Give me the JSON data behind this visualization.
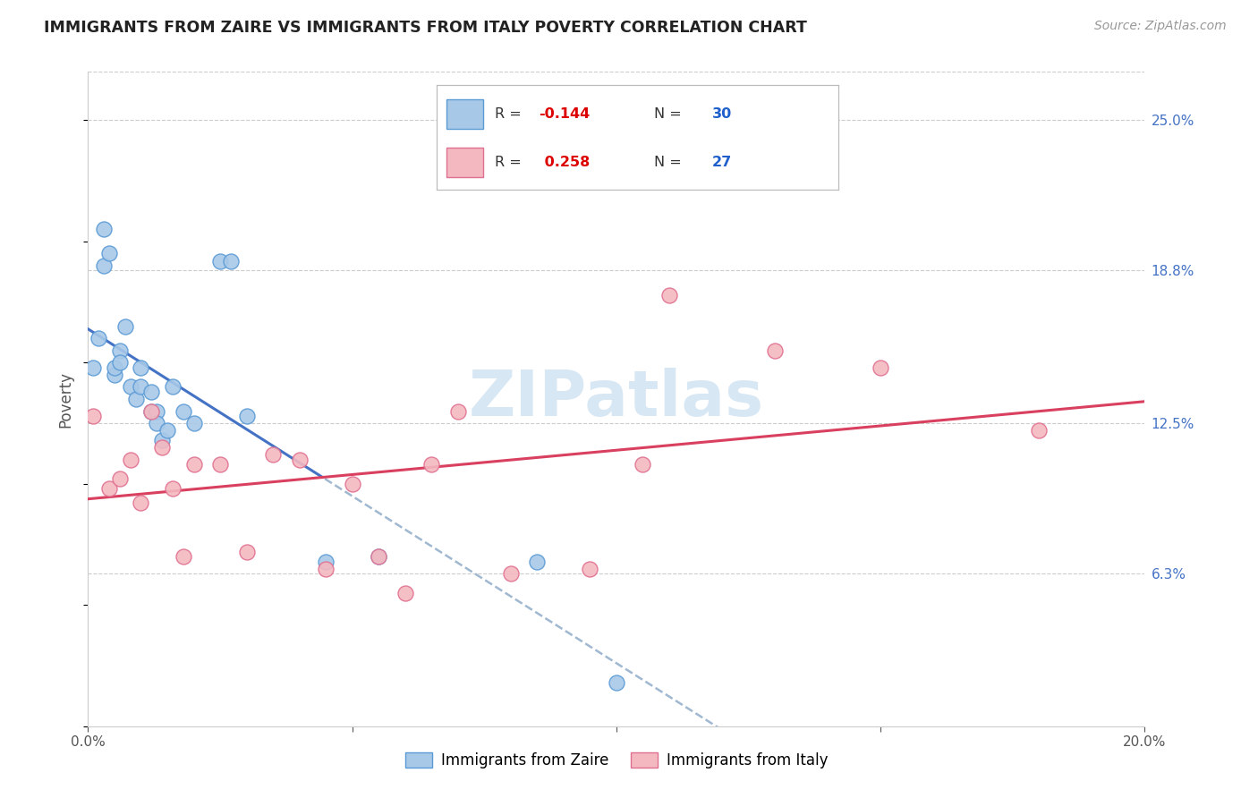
{
  "title": "IMMIGRANTS FROM ZAIRE VS IMMIGRANTS FROM ITALY POVERTY CORRELATION CHART",
  "source": "Source: ZipAtlas.com",
  "ylabel": "Poverty",
  "ytick_labels": [
    "25.0%",
    "18.8%",
    "12.5%",
    "6.3%"
  ],
  "ytick_values": [
    0.25,
    0.188,
    0.125,
    0.063
  ],
  "xlim": [
    0.0,
    0.2
  ],
  "ylim": [
    0.0,
    0.27
  ],
  "zaire_R": -0.144,
  "zaire_N": 30,
  "italy_R": 0.258,
  "italy_N": 27,
  "zaire_color": "#a8c8e8",
  "italy_color": "#f4b8c0",
  "zaire_edge_color": "#5b9bd5",
  "italy_edge_color": "#e07090",
  "zaire_line_color": "#4472c4",
  "italy_line_color": "#d94060",
  "dash_color": "#a0b8d0",
  "watermark_color": "#c8ddf0",
  "legend_R_neg_color": "#cc0000",
  "legend_R_pos_color": "#cc0000",
  "legend_N_color": "#1f5fcc",
  "zaire_x": [
    0.001,
    0.002,
    0.003,
    0.003,
    0.004,
    0.005,
    0.005,
    0.006,
    0.006,
    0.007,
    0.008,
    0.009,
    0.01,
    0.01,
    0.012,
    0.012,
    0.013,
    0.013,
    0.014,
    0.015,
    0.016,
    0.018,
    0.02,
    0.025,
    0.027,
    0.03,
    0.045,
    0.055,
    0.085,
    0.1
  ],
  "zaire_y": [
    0.148,
    0.16,
    0.205,
    0.19,
    0.195,
    0.145,
    0.148,
    0.155,
    0.15,
    0.165,
    0.14,
    0.135,
    0.148,
    0.14,
    0.138,
    0.13,
    0.13,
    0.125,
    0.118,
    0.122,
    0.14,
    0.13,
    0.125,
    0.192,
    0.192,
    0.128,
    0.068,
    0.07,
    0.068,
    0.018
  ],
  "italy_x": [
    0.001,
    0.004,
    0.006,
    0.008,
    0.01,
    0.012,
    0.014,
    0.016,
    0.018,
    0.02,
    0.025,
    0.03,
    0.035,
    0.04,
    0.045,
    0.05,
    0.055,
    0.06,
    0.065,
    0.07,
    0.08,
    0.095,
    0.105,
    0.11,
    0.13,
    0.15,
    0.18
  ],
  "italy_y": [
    0.128,
    0.098,
    0.102,
    0.11,
    0.092,
    0.13,
    0.115,
    0.098,
    0.07,
    0.108,
    0.108,
    0.072,
    0.112,
    0.11,
    0.065,
    0.1,
    0.07,
    0.055,
    0.108,
    0.13,
    0.063,
    0.065,
    0.108,
    0.178,
    0.155,
    0.148,
    0.122
  ]
}
